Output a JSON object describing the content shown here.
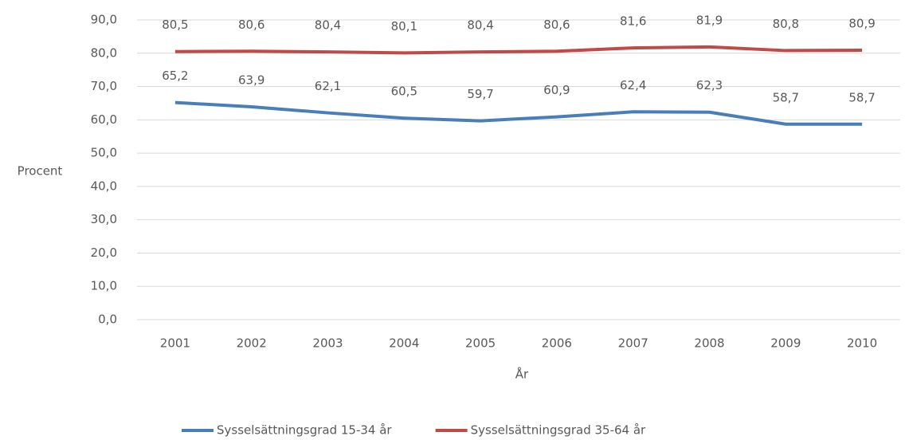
{
  "chart_data": {
    "type": "line",
    "x_label": "År",
    "y_label": "Procent",
    "categories": [
      "2001",
      "2002",
      "2003",
      "2004",
      "2005",
      "2006",
      "2007",
      "2008",
      "2009",
      "2010"
    ],
    "series": [
      {
        "name": "Sysselsättningsgrad 15-34 år",
        "color": "#4a7ebb",
        "values": [
          65.2,
          63.9,
          62.1,
          60.5,
          59.7,
          60.9,
          62.4,
          62.3,
          58.7,
          58.7
        ],
        "value_labels": [
          "65,2",
          "63,9",
          "62,1",
          "60,5",
          "59,7",
          "60,9",
          "62,4",
          "62,3",
          "58,7",
          "58,7"
        ]
      },
      {
        "name": "Sysselsättningsgrad 35-64 år",
        "color": "#be4b48",
        "values": [
          80.5,
          80.6,
          80.4,
          80.1,
          80.4,
          80.6,
          81.6,
          81.9,
          80.8,
          80.9
        ],
        "value_labels": [
          "80,5",
          "80,6",
          "80,4",
          "80,1",
          "80,4",
          "80,6",
          "81,6",
          "81,9",
          "80,8",
          "80,9"
        ]
      }
    ],
    "ylim": [
      0,
      90
    ],
    "yticks": [
      {
        "value": 0,
        "label": "0,0"
      },
      {
        "value": 10,
        "label": "10,0"
      },
      {
        "value": 20,
        "label": "20,0"
      },
      {
        "value": 30,
        "label": "30,0"
      },
      {
        "value": 40,
        "label": "40,0"
      },
      {
        "value": 50,
        "label": "50,0"
      },
      {
        "value": 60,
        "label": "60,0"
      },
      {
        "value": 70,
        "label": "70,0"
      },
      {
        "value": 80,
        "label": "80,0"
      },
      {
        "value": 90,
        "label": "90,0"
      }
    ],
    "grid": true,
    "legend": "bottom"
  }
}
